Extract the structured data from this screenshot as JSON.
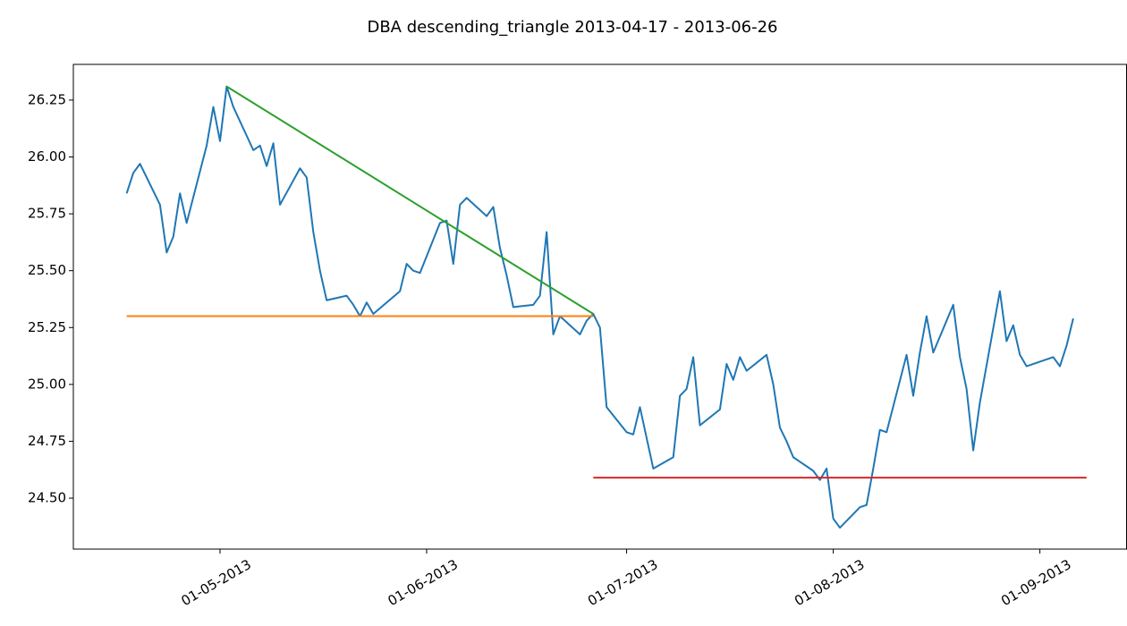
{
  "chart_data": {
    "type": "line",
    "title": "DBA descending_triangle 2013-04-17 - 2013-06-26",
    "xlim": [
      "2013-04-09",
      "2013-09-14"
    ],
    "ylim": [
      24.276,
      26.407
    ],
    "xticks": [
      {
        "value": "2013-05-01",
        "label": "01-05-2013"
      },
      {
        "value": "2013-06-01",
        "label": "01-06-2013"
      },
      {
        "value": "2013-07-01",
        "label": "01-07-2013"
      },
      {
        "value": "2013-08-01",
        "label": "01-08-2013"
      },
      {
        "value": "2013-09-01",
        "label": "01-09-2013"
      }
    ],
    "yticks": [
      {
        "value": 24.5,
        "label": "24.50"
      },
      {
        "value": 24.75,
        "label": "24.75"
      },
      {
        "value": 25,
        "label": "25.00"
      },
      {
        "value": 25.25,
        "label": "25.25"
      },
      {
        "value": 25.5,
        "label": "25.50"
      },
      {
        "value": 25.75,
        "label": "25.75"
      },
      {
        "value": 26,
        "label": "26.00"
      },
      {
        "value": 26.25,
        "label": "26.25"
      }
    ],
    "grid": false,
    "series": [
      {
        "color": "#1f77b4",
        "x": [
          "2013-04-17",
          "2013-04-18",
          "2013-04-19",
          "2013-04-22",
          "2013-04-23",
          "2013-04-24",
          "2013-04-25",
          "2013-04-26",
          "2013-04-29",
          "2013-04-30",
          "2013-05-01",
          "2013-05-02",
          "2013-05-03",
          "2013-05-06",
          "2013-05-07",
          "2013-05-08",
          "2013-05-09",
          "2013-05-10",
          "2013-05-13",
          "2013-05-14",
          "2013-05-15",
          "2013-05-16",
          "2013-05-17",
          "2013-05-20",
          "2013-05-21",
          "2013-05-22",
          "2013-05-23",
          "2013-05-24",
          "2013-05-28",
          "2013-05-29",
          "2013-05-30",
          "2013-05-31",
          "2013-06-03",
          "2013-06-04",
          "2013-06-05",
          "2013-06-06",
          "2013-06-07",
          "2013-06-10",
          "2013-06-11",
          "2013-06-12",
          "2013-06-13",
          "2013-06-14",
          "2013-06-17",
          "2013-06-18",
          "2013-06-19",
          "2013-06-20",
          "2013-06-21",
          "2013-06-24",
          "2013-06-25",
          "2013-06-26",
          "2013-06-27",
          "2013-06-28",
          "2013-07-01",
          "2013-07-02",
          "2013-07-03",
          "2013-07-05",
          "2013-07-08",
          "2013-07-09",
          "2013-07-10",
          "2013-07-11",
          "2013-07-12",
          "2013-07-15",
          "2013-07-16",
          "2013-07-17",
          "2013-07-18",
          "2013-07-19",
          "2013-07-22",
          "2013-07-23",
          "2013-07-24",
          "2013-07-25",
          "2013-07-26",
          "2013-07-29",
          "2013-07-30",
          "2013-07-31",
          "2013-08-01",
          "2013-08-02",
          "2013-08-05",
          "2013-08-06",
          "2013-08-07",
          "2013-08-08",
          "2013-08-09",
          "2013-08-12",
          "2013-08-13",
          "2013-08-14",
          "2013-08-15",
          "2013-08-16",
          "2013-08-19",
          "2013-08-20",
          "2013-08-21",
          "2013-08-22",
          "2013-08-23",
          "2013-08-26",
          "2013-08-27",
          "2013-08-28",
          "2013-08-29",
          "2013-08-30",
          "2013-09-03",
          "2013-09-04",
          "2013-09-05",
          "2013-09-06"
        ],
        "values": [
          25.84,
          25.93,
          25.97,
          25.79,
          25.58,
          25.65,
          25.84,
          25.71,
          26.05,
          26.22,
          26.07,
          26.31,
          26.22,
          26.03,
          26.05,
          25.96,
          26.06,
          25.79,
          25.95,
          25.91,
          25.67,
          25.5,
          25.37,
          25.39,
          25.35,
          25.3,
          25.36,
          25.31,
          25.41,
          25.53,
          25.5,
          25.49,
          25.71,
          25.72,
          25.53,
          25.79,
          25.82,
          25.74,
          25.78,
          25.6,
          25.48,
          25.34,
          25.35,
          25.39,
          25.67,
          25.22,
          25.3,
          25.22,
          25.28,
          25.31,
          25.25,
          24.9,
          24.79,
          24.78,
          24.9,
          24.63,
          24.68,
          24.95,
          24.98,
          25.12,
          24.82,
          24.89,
          25.09,
          25.02,
          25.12,
          25.06,
          25.13,
          25.0,
          24.81,
          24.75,
          24.68,
          24.62,
          24.58,
          24.63,
          24.41,
          24.37,
          24.46,
          24.47,
          24.63,
          24.8,
          24.79,
          25.13,
          24.95,
          25.14,
          25.3,
          25.14,
          25.35,
          25.12,
          24.98,
          24.71,
          24.92,
          25.41,
          25.19,
          25.26,
          25.13,
          25.08,
          25.12,
          25.08,
          25.17,
          25.29
        ]
      },
      {
        "color": "#2ca02c",
        "x": [
          "2013-05-02",
          "2013-06-26"
        ],
        "values": [
          26.31,
          25.31
        ]
      },
      {
        "color": "#ff7f0e",
        "x": [
          "2013-04-17",
          "2013-06-26"
        ],
        "values": [
          25.3,
          25.3
        ]
      },
      {
        "color": "#d62728",
        "x": [
          "2013-06-26",
          "2013-09-08"
        ],
        "values": [
          24.59,
          24.59
        ]
      }
    ]
  }
}
